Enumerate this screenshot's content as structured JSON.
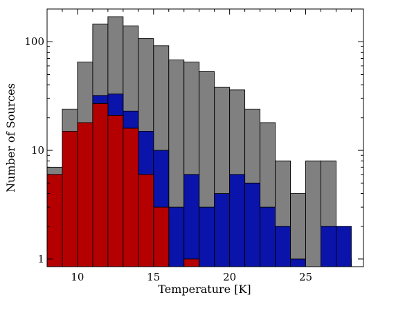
{
  "chart_data": {
    "type": "bar",
    "stacking": "overlaid",
    "xlabel": "Temperature [K]",
    "ylabel": "Number of Sources",
    "xlim": [
      8,
      28.8
    ],
    "ylim": [
      0.85,
      200
    ],
    "yscale": "log",
    "bin_width": 1,
    "bin_starts": [
      8,
      9,
      10,
      11,
      12,
      13,
      14,
      15,
      16,
      17,
      18,
      19,
      20,
      21,
      22,
      23,
      24,
      25,
      26,
      27,
      28
    ],
    "xticks": [
      10,
      15,
      20,
      25
    ],
    "yticks": [
      1,
      10,
      100
    ],
    "xtick_labels": [
      "10",
      "15",
      "20",
      "25"
    ],
    "ytick_labels": [
      "1",
      "10",
      "100"
    ],
    "grid": false,
    "series": [
      {
        "color": "#808080",
        "values": [
          7,
          24,
          65,
          145,
          170,
          140,
          107,
          92,
          68,
          65,
          53,
          38,
          36,
          24,
          18,
          8,
          4,
          8,
          8,
          1,
          null
        ]
      },
      {
        "color": "#0a14aa",
        "values": [
          null,
          null,
          null,
          32,
          33,
          23,
          15,
          10,
          3,
          6,
          3,
          4,
          6,
          5,
          3,
          2,
          1,
          0.85,
          2,
          2,
          null
        ]
      },
      {
        "color": "#b40000",
        "values": [
          6,
          15,
          18,
          27,
          21,
          16,
          6,
          3,
          null,
          1,
          null,
          null,
          null,
          null,
          null,
          null,
          null,
          null,
          null,
          null,
          null
        ]
      }
    ]
  }
}
